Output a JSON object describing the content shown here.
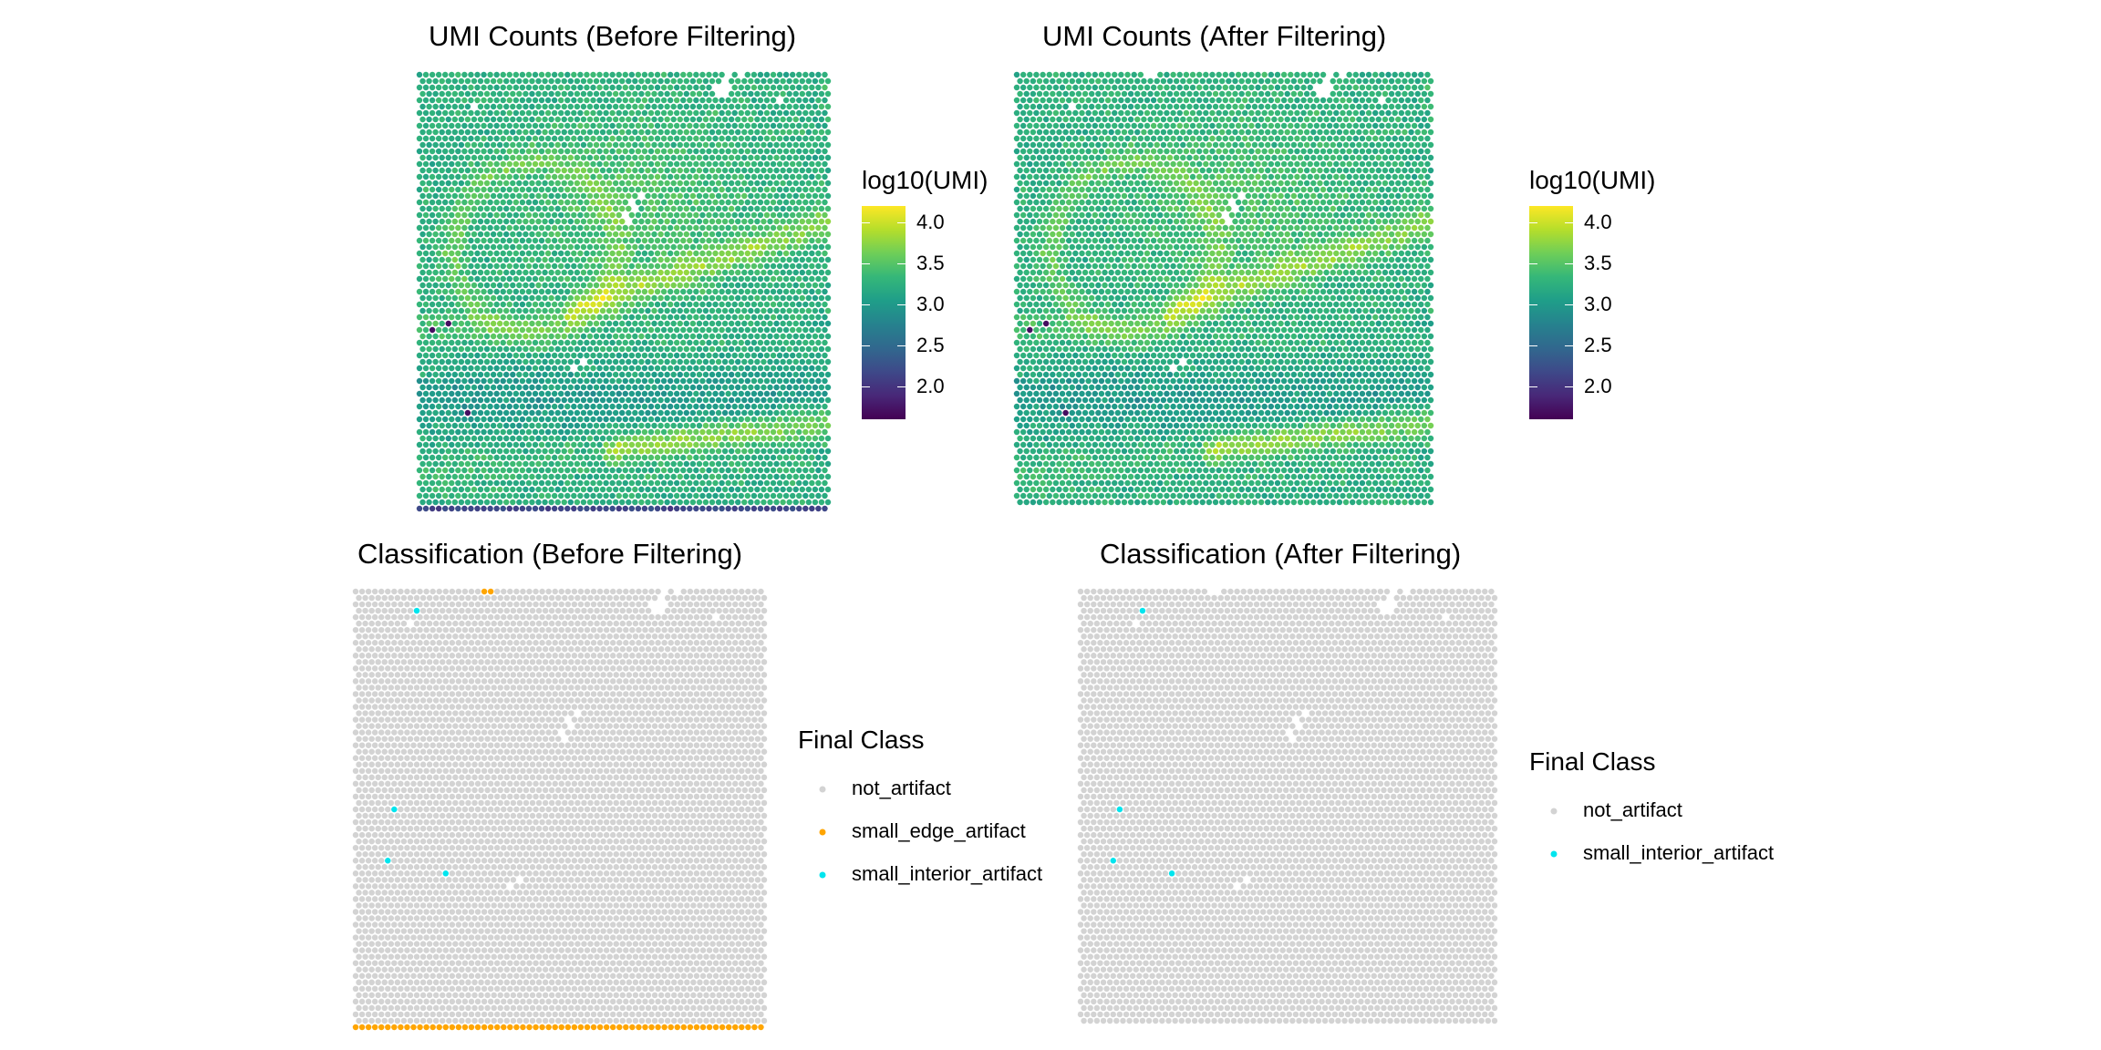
{
  "colors": {
    "viridis": [
      "#440154",
      "#482878",
      "#3e4989",
      "#31688e",
      "#26828e",
      "#1f9e89",
      "#35b779",
      "#6ece58",
      "#b5de2b",
      "#fde725"
    ],
    "not_artifact": "#d3d3d3",
    "small_edge_artifact": "#ffa500",
    "small_interior_artifact": "#00e5ee"
  },
  "chart_data": [
    {
      "type": "scatter",
      "title": "UMI Counts (Before Filtering)",
      "legend": {
        "title": "log10(UMI)",
        "kind": "colorbar",
        "range": [
          1.6,
          4.2
        ],
        "ticks": [
          "4.0",
          "3.5",
          "3.0",
          "2.5",
          "2.0"
        ],
        "tick_values": [
          4.0,
          3.5,
          3.0,
          2.5,
          2.0
        ],
        "placement": "right"
      },
      "grid": false
    },
    {
      "type": "scatter",
      "title": "UMI Counts (After Filtering)",
      "legend": {
        "title": "log10(UMI)",
        "kind": "colorbar",
        "range": [
          1.6,
          4.2
        ],
        "ticks": [
          "4.0",
          "3.5",
          "3.0",
          "2.5",
          "2.0"
        ],
        "tick_values": [
          4.0,
          3.5,
          3.0,
          2.5,
          2.0
        ],
        "placement": "right"
      },
      "grid": false
    },
    {
      "type": "scatter",
      "title": "Classification (Before Filtering)",
      "legend": {
        "title": "Final Class",
        "kind": "categorical",
        "entries": [
          "not_artifact",
          "small_edge_artifact",
          "small_interior_artifact"
        ],
        "placement": "right"
      },
      "grid": false
    },
    {
      "type": "scatter",
      "title": "Classification (After Filtering)",
      "legend": {
        "title": "Final Class",
        "kind": "categorical",
        "entries": [
          "not_artifact",
          "small_interior_artifact"
        ],
        "placement": "right"
      },
      "grid": false
    }
  ]
}
